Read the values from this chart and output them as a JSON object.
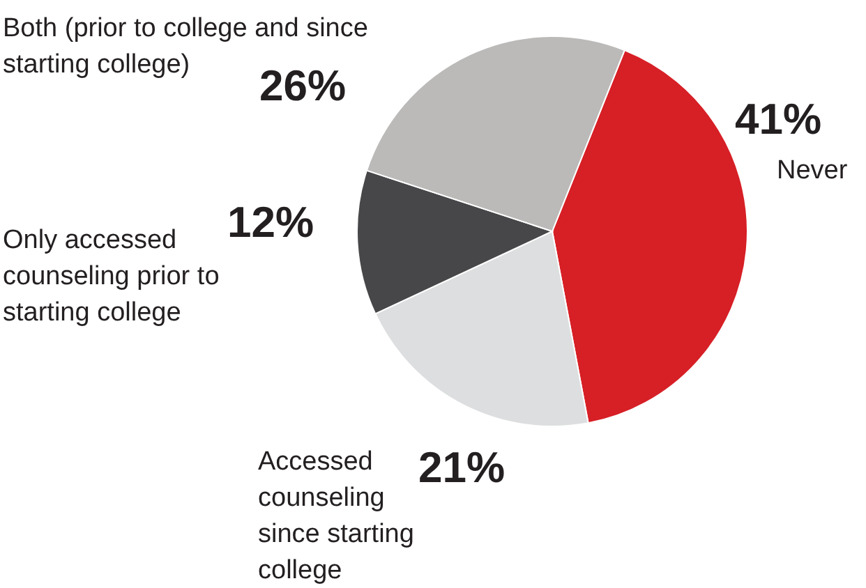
{
  "chart_data": {
    "type": "pie",
    "categories": [
      "Never",
      "Accessed counseling since starting college",
      "Only accessed counseling prior to starting college",
      "Both (prior to college and since starting college)"
    ],
    "values": [
      41,
      21,
      12,
      26
    ],
    "colors": [
      "#d71f26",
      "#dcdedf",
      "#474749",
      "#bbbab9"
    ],
    "value_labels": [
      "41%",
      "21%",
      "12%",
      "26%"
    ]
  }
}
